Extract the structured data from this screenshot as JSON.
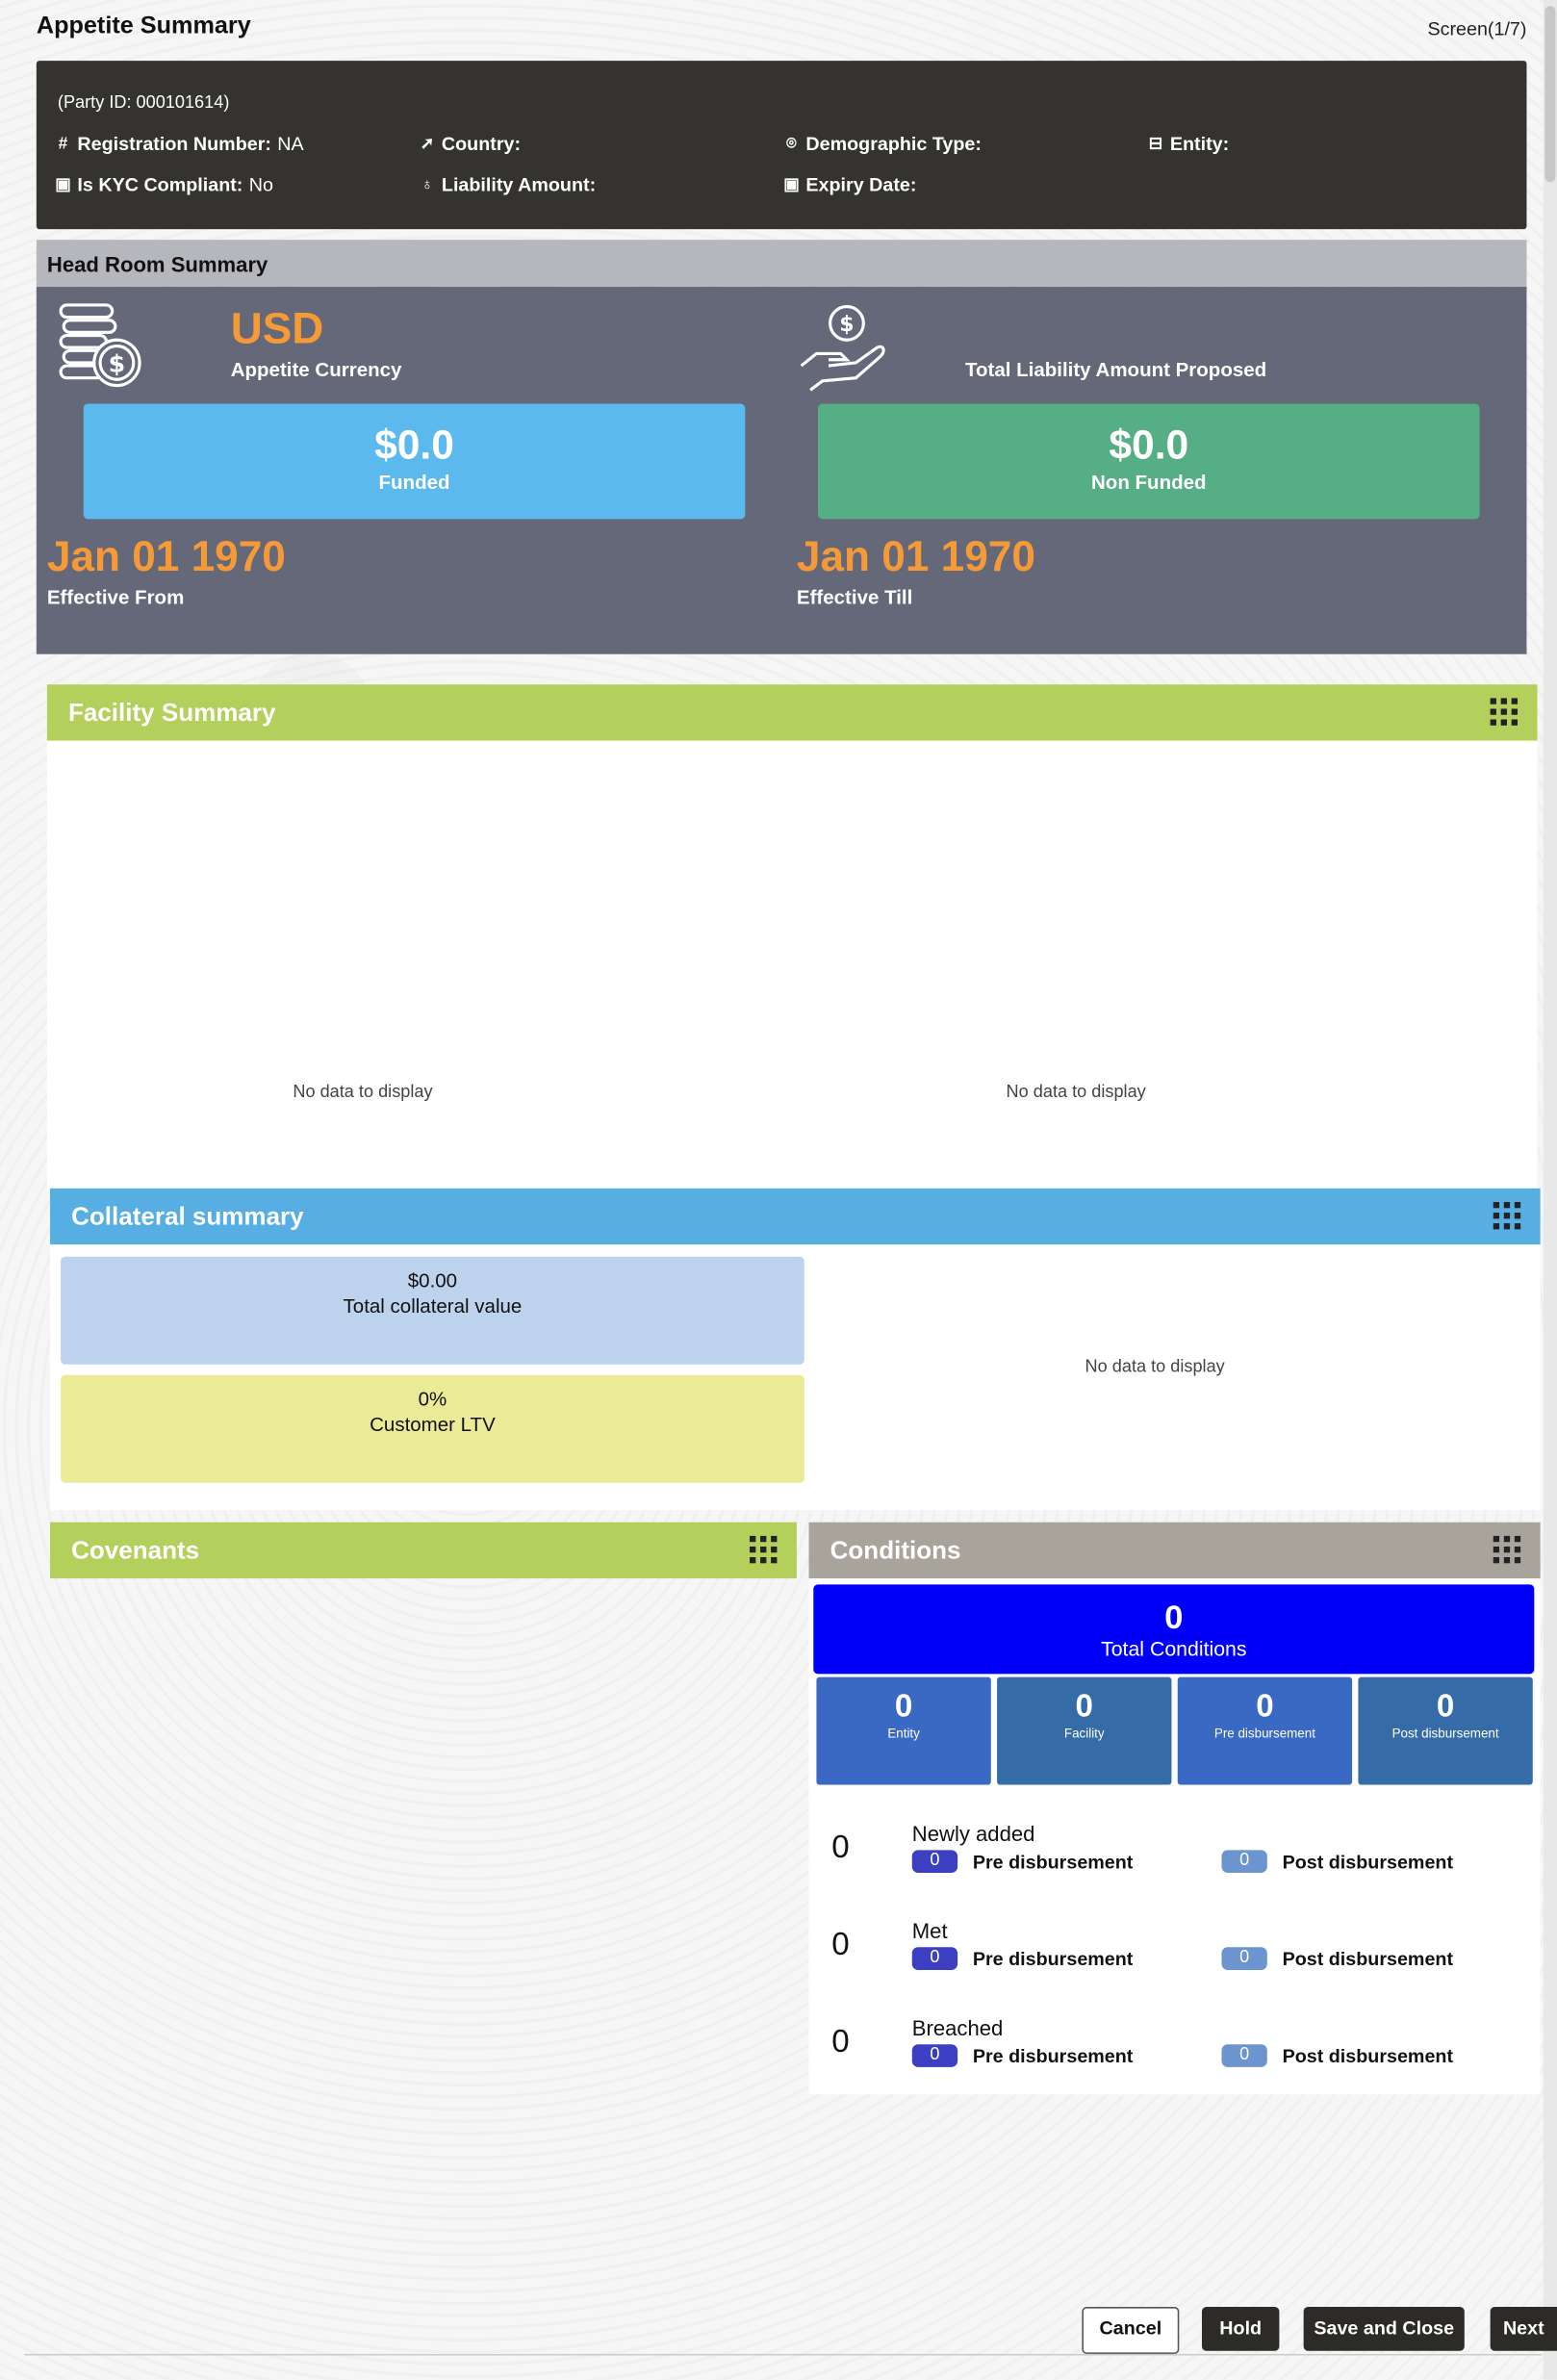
{
  "page": {
    "title": "Appetite Summary",
    "screen": "Screen(1/7)"
  },
  "party": {
    "party_id": "(Party ID: 000101614)",
    "fields": [
      {
        "label": "Registration Number:",
        "value": "NA",
        "icon": "hash-icon"
      },
      {
        "label": "Country:",
        "value": "",
        "icon": "navigation-icon"
      },
      {
        "label": "Demographic Type:",
        "value": "",
        "icon": "location-pin-icon"
      },
      {
        "label": "Entity:",
        "value": "",
        "icon": "card-icon"
      },
      {
        "label": "Is KYC Compliant:",
        "value": "No",
        "icon": "calendar-icon"
      },
      {
        "label": "Liability Amount:",
        "value": "",
        "icon": "hand-money-icon"
      },
      {
        "label": "Expiry Date:",
        "value": "",
        "icon": "calendar-icon"
      }
    ]
  },
  "headroom": {
    "title": "Head Room Summary",
    "currency": "USD",
    "currency_label": "Appetite Currency",
    "proposed_label": "Total Liability Amount Proposed",
    "funded_amount": "$0.0",
    "funded_label": "Funded",
    "nonfunded_amount": "$0.0",
    "nonfunded_label": "Non Funded",
    "effective_from": "Jan 01 1970",
    "effective_from_label": "Effective From",
    "effective_till": "Jan 01 1970",
    "effective_till_label": "Effective Till",
    "colors": {
      "funded": "#5bb9ee",
      "nonfunded": "#55ae84",
      "accent": "#f59a37"
    }
  },
  "facility": {
    "title": "Facility Summary",
    "no_data_left": "No data to display",
    "no_data_right": "No data to display",
    "color": "#b3cf5c"
  },
  "collateral": {
    "title": "Collateral summary",
    "total_value": "$0.00",
    "total_label": "Total collateral value",
    "ltv_value": "0%",
    "ltv_label": "Customer LTV",
    "no_data": "No data to display",
    "color": "#56aee2"
  },
  "covenants": {
    "title": "Covenants",
    "color": "#b3cf5c"
  },
  "conditions": {
    "title": "Conditions",
    "total": "0",
    "total_label": "Total Conditions",
    "breakdown": [
      {
        "value": "0",
        "label": "Entity"
      },
      {
        "value": "0",
        "label": "Facility"
      },
      {
        "value": "0",
        "label": "Pre disbursement"
      },
      {
        "value": "0",
        "label": "Post disbursement"
      }
    ],
    "rows": [
      {
        "count": "0",
        "title": "Newly added",
        "pre": "0",
        "pre_label": "Pre disbursement",
        "post": "0",
        "post_label": "Post disbursement"
      },
      {
        "count": "0",
        "title": "Met",
        "pre": "0",
        "pre_label": "Pre disbursement",
        "post": "0",
        "post_label": "Post disbursement"
      },
      {
        "count": "0",
        "title": "Breached",
        "pre": "0",
        "pre_label": "Pre disbursement",
        "post": "0",
        "post_label": "Post disbursement"
      }
    ]
  },
  "footer": {
    "cancel": "Cancel",
    "hold": "Hold",
    "save_close": "Save and Close",
    "next": "Next"
  }
}
